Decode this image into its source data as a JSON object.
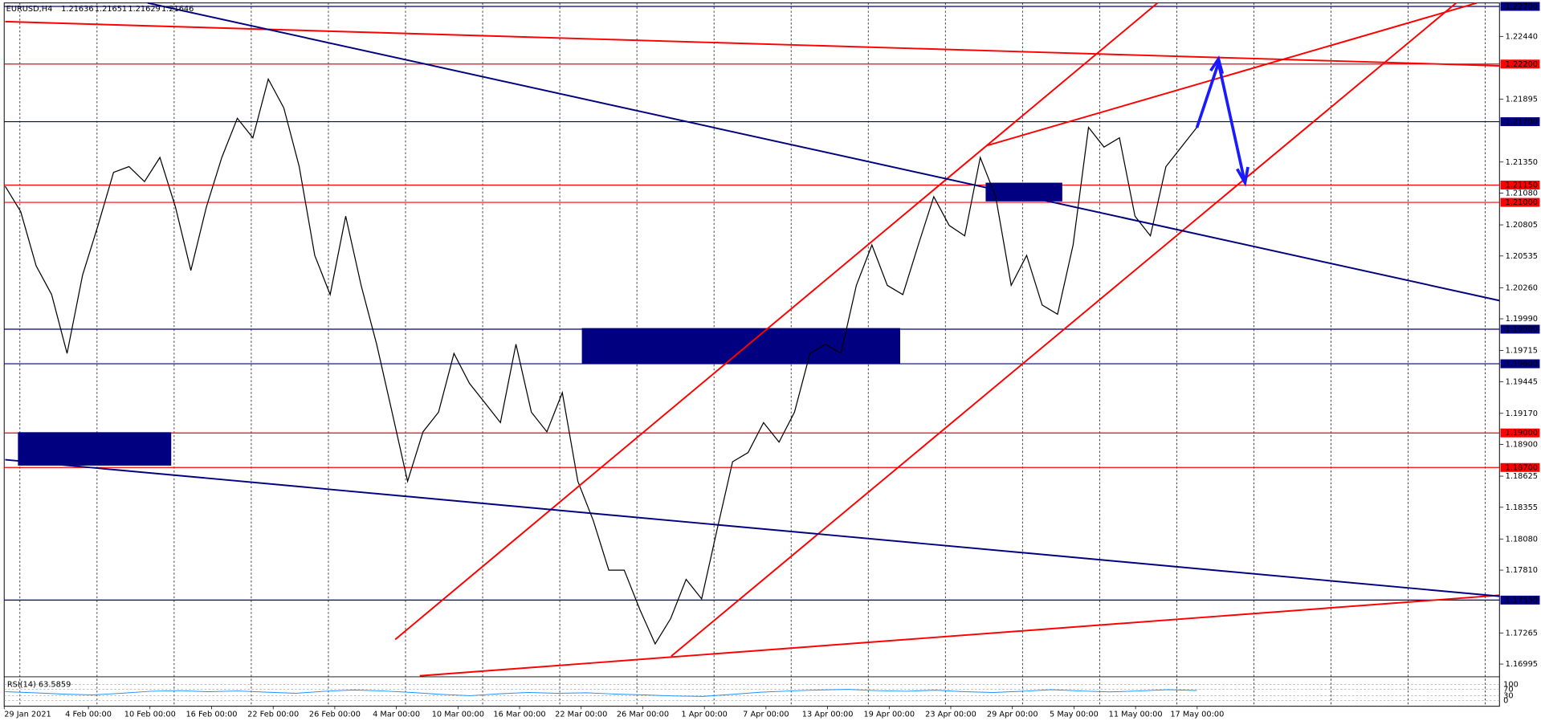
{
  "chart_data": {
    "type": "line",
    "symbol": "EURUSD,H4",
    "ohlc": [
      1.21636,
      1.21651,
      1.21629,
      1.21646
    ],
    "ylim": [
      1.16893,
      1.2273
    ],
    "yticks": [
      {
        "value": 1.2244,
        "label": "1.22440"
      },
      {
        "value": 1.21895,
        "label": "1.21895"
      },
      {
        "value": 1.2135,
        "label": "1.21350"
      },
      {
        "value": 1.2108,
        "label": "1.21080"
      },
      {
        "value": 1.20805,
        "label": "1.20805"
      },
      {
        "value": 1.20535,
        "label": "1.20535"
      },
      {
        "value": 1.2026,
        "label": "1.20260"
      },
      {
        "value": 1.1999,
        "label": "1.19990"
      },
      {
        "value": 1.19715,
        "label": "1.19715"
      },
      {
        "value": 1.19445,
        "label": "1.19445"
      },
      {
        "value": 1.1917,
        "label": "1.19170"
      },
      {
        "value": 1.189,
        "label": "1.18900"
      },
      {
        "value": 1.18625,
        "label": "1.18625"
      },
      {
        "value": 1.18355,
        "label": "1.18355"
      },
      {
        "value": 1.1808,
        "label": "1.18080"
      },
      {
        "value": 1.1781,
        "label": "1.17810"
      },
      {
        "value": 1.17265,
        "label": "1.17265"
      },
      {
        "value": 1.16995,
        "label": "1.16995"
      }
    ],
    "levels": [
      {
        "value": 1.227,
        "label": "1.22700",
        "color": "#000080"
      },
      {
        "value": 1.222,
        "label": "1.22200",
        "color": "#ff0000"
      },
      {
        "value": 1.217,
        "label": "1.21700",
        "color": "#000080"
      },
      {
        "value": 1.2115,
        "label": "1.21150",
        "color": "#ff0000"
      },
      {
        "value": 1.21,
        "label": "1.21000",
        "color": "#ff0000"
      },
      {
        "value": 1.199,
        "label": "1.19900",
        "color": "#000080"
      },
      {
        "value": 1.196,
        "label": "1.19600",
        "color": "#000080"
      },
      {
        "value": 1.19,
        "label": "1.19000",
        "color": "#ff0000"
      },
      {
        "value": 1.187,
        "label": "1.18700",
        "color": "#ff0000"
      },
      {
        "value": 1.1755,
        "label": "1.17550",
        "color": "#000080"
      }
    ],
    "x_labels": [
      "29 Jan 2021",
      "4 Feb 00:00",
      "10 Feb 00:00",
      "16 Feb 00:00",
      "22 Feb 00:00",
      "26 Feb 00:00",
      "4 Mar 00:00",
      "10 Mar 00:00",
      "16 Mar 00:00",
      "22 Mar 00:00",
      "26 Mar 00:00",
      "1 Apr 00:00",
      "7 Apr 00:00",
      "13 Apr 00:00",
      "19 Apr 00:00",
      "23 Apr 00:00",
      "29 Apr 00:00",
      "5 May 00:00",
      "11 May 00:00",
      "17 May 00:00"
    ],
    "series": [
      {
        "color": "#000000",
        "values": [
          1.2114,
          1.2092,
          1.2045,
          1.202,
          1.1969,
          1.2037,
          1.208,
          1.2126,
          1.2131,
          1.2118,
          1.2139,
          1.2096,
          1.2041,
          1.2096,
          1.2139,
          1.2173,
          1.2156,
          1.2207,
          1.2182,
          1.2131,
          1.2054,
          1.202,
          1.2088,
          1.2028,
          1.1977,
          1.1918,
          1.1858,
          1.1901,
          1.1918,
          1.1969,
          1.1943,
          1.1926,
          1.1909,
          1.1977,
          1.1918,
          1.1901,
          1.1935,
          1.1858,
          1.1824,
          1.1781,
          1.1781,
          1.1747,
          1.1717,
          1.1739,
          1.1773,
          1.1756,
          1.1816,
          1.1875,
          1.1883,
          1.1909,
          1.1892,
          1.1918,
          1.1969,
          1.1977,
          1.1969,
          1.2028,
          1.2063,
          1.2028,
          1.202,
          1.2063,
          1.2105,
          1.208,
          1.2071,
          1.2139,
          1.2105,
          1.2028,
          1.2054,
          1.2011,
          1.2003,
          1.2063,
          1.2165,
          1.2148,
          1.2156,
          1.2088,
          1.2071,
          1.2131,
          1.2148,
          1.2165
        ]
      }
    ],
    "rsi": {
      "label": "RSI(14) 63.5859",
      "color": "#1e90ff",
      "ylim": [
        0,
        100
      ],
      "yticks": [
        100,
        70,
        30,
        0
      ],
      "values": [
        55,
        48,
        40,
        35,
        45,
        58,
        62,
        55,
        60,
        52,
        45,
        58,
        66,
        60,
        50,
        38,
        30,
        42,
        50,
        45,
        48,
        40,
        35,
        28,
        25,
        38,
        52,
        60,
        66,
        70,
        62,
        58,
        65,
        55,
        50,
        58,
        68,
        60,
        54,
        60,
        68,
        63
      ]
    }
  }
}
